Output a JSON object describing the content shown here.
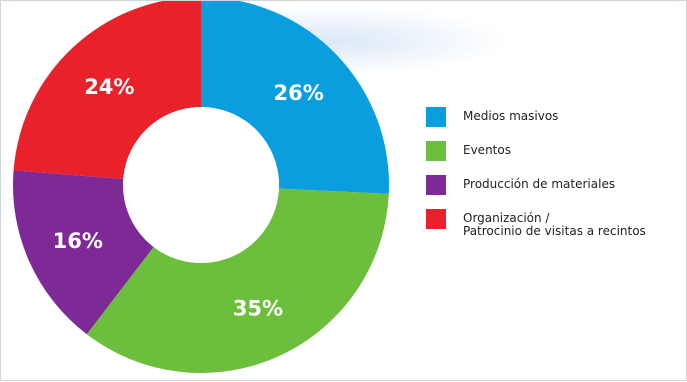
{
  "chart_data": {
    "type": "pie",
    "donut": true,
    "slices": [
      {
        "label": "Medios masivos",
        "value": 26,
        "display": "26%",
        "color": "#0a9ede"
      },
      {
        "label": "Eventos",
        "value": 35,
        "display": "35%",
        "color": "#6cbf3c"
      },
      {
        "label": "Producción de materiales",
        "value": 16,
        "display": "16%",
        "color": "#7d2a96"
      },
      {
        "label": "Organización /\nPatrocinio de visitas a recintos",
        "value": 24,
        "display": "24%",
        "color": "#e8212b"
      }
    ],
    "legend_lines": [
      [
        "Medios masivos"
      ],
      [
        "Eventos"
      ],
      [
        "Producción de materiales"
      ],
      [
        "Organización /",
        "Patrocinio de visitas a recintos"
      ]
    ],
    "legend_position": "right"
  }
}
